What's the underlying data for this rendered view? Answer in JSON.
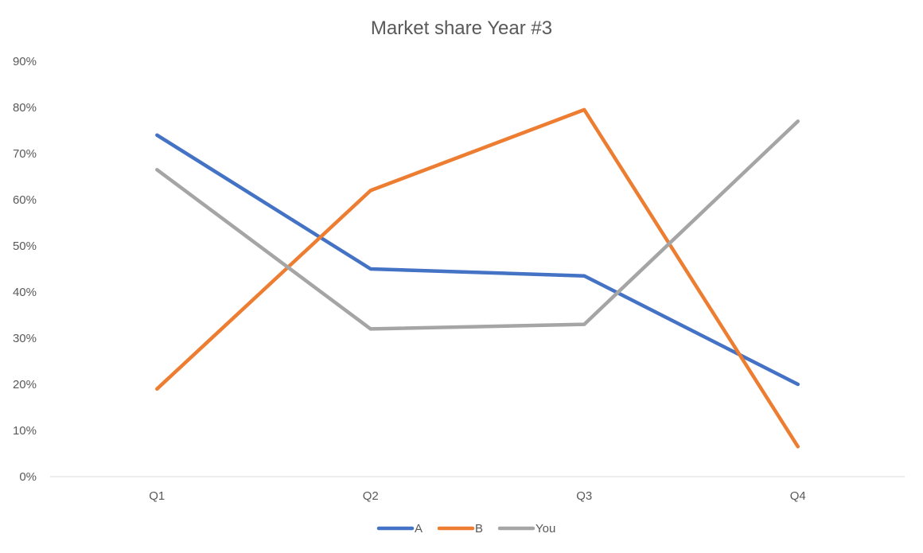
{
  "chart_data": {
    "type": "line",
    "title": "Market share Year #3",
    "xlabel": "",
    "ylabel": "",
    "categories": [
      "Q1",
      "Q2",
      "Q3",
      "Q4"
    ],
    "y_ticks": [
      "0%",
      "10%",
      "20%",
      "30%",
      "40%",
      "50%",
      "60%",
      "70%",
      "80%",
      "90%"
    ],
    "ylim": [
      0,
      90
    ],
    "grid": false,
    "legend_position": "bottom",
    "series": [
      {
        "name": "A",
        "color": "#4472C4",
        "values": [
          74,
          45,
          43.5,
          20
        ]
      },
      {
        "name": "B",
        "color": "#ED7D31",
        "values": [
          19,
          62,
          79.5,
          6.5
        ]
      },
      {
        "name": "You",
        "color": "#A5A5A5",
        "values": [
          66.5,
          32,
          33,
          77
        ]
      }
    ]
  }
}
